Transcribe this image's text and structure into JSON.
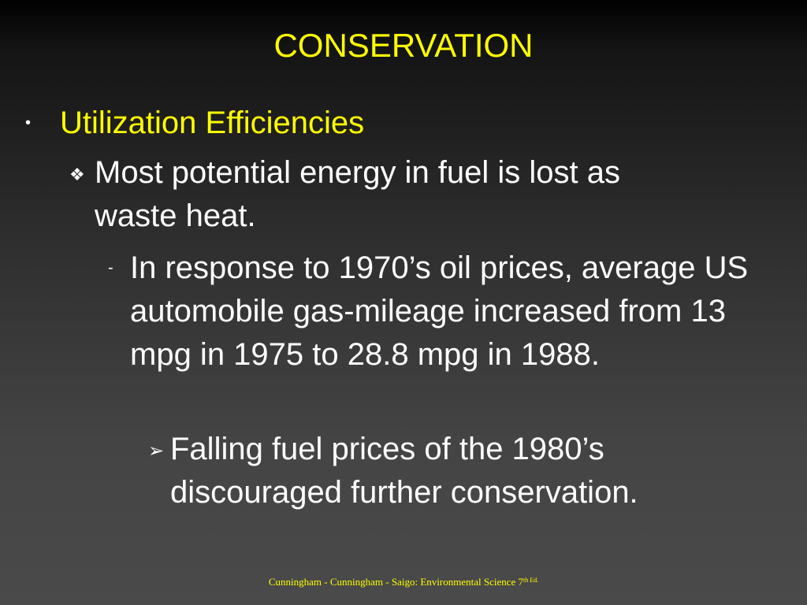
{
  "slide": {
    "title": "CONSERVATION",
    "level1": {
      "bullet": "•",
      "text": "Utilization Efficiencies"
    },
    "level2": {
      "bullet": "❖",
      "text": "Most potential energy in fuel is lost as waste heat."
    },
    "level3": {
      "bullet": "-",
      "text": "In response to 1970’s oil prices, average US automobile gas-mileage increased from 13 mpg in 1975 to 28.8 mpg in 1988."
    },
    "level4": {
      "bullet": "➢",
      "text": "Falling fuel prices of the 1980’s discouraged further conservation."
    },
    "footer": {
      "text": "Cunningham - Cunningham - Saigo: Environmental Science 7",
      "superscript": "th Ed."
    }
  },
  "colors": {
    "title": "#ffff00",
    "body_text": "#ffffff",
    "background_top": "#000000",
    "background_bottom": "#4a4a4a"
  }
}
